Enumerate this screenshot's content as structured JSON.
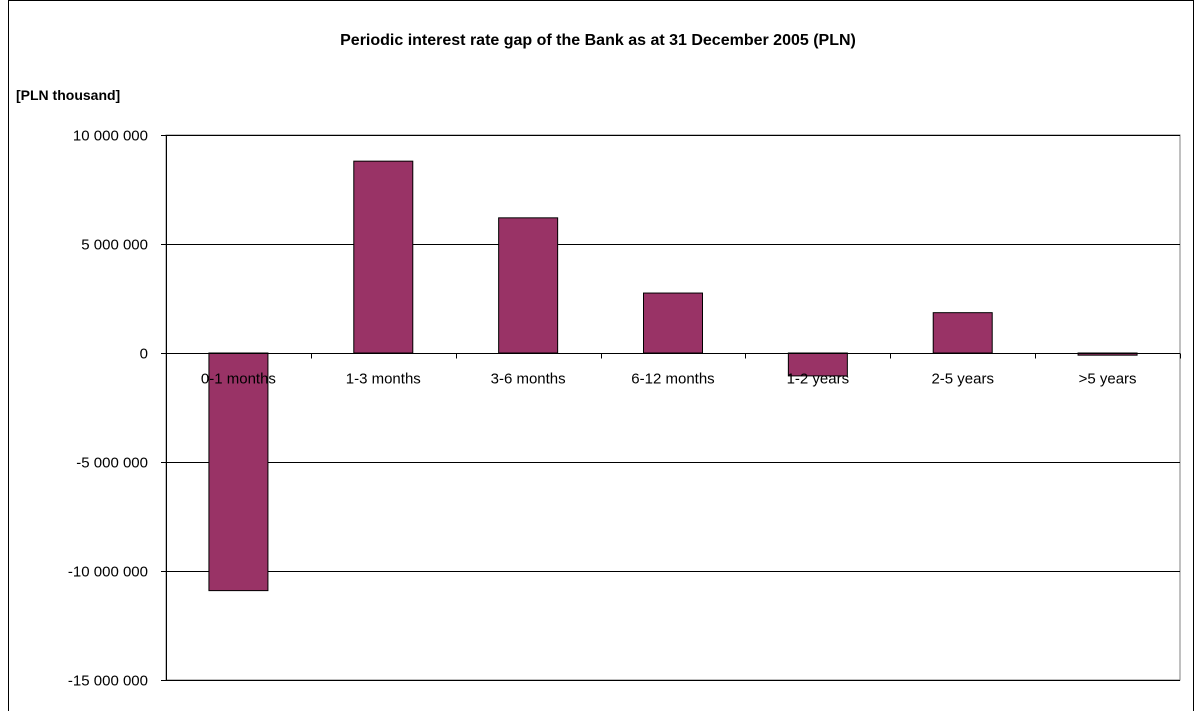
{
  "chart_data": {
    "type": "bar",
    "title": "Periodic interest rate gap of the Bank as at 31 December 2005 (PLN)",
    "ylabel": "[PLN thousand]",
    "xlabel": "",
    "categories": [
      "0-1 months",
      "1-3 months",
      "3-6 months",
      "6-12 months",
      "1-2 years",
      "2-5 years",
      ">5 years"
    ],
    "values": [
      -10900000,
      8800000,
      6200000,
      2750000,
      -1050000,
      1850000,
      -100000
    ],
    "ylim": [
      -15000000,
      10000000
    ],
    "yticks": [
      10000000,
      5000000,
      0,
      -5000000,
      -10000000,
      -15000000
    ],
    "ytick_labels": [
      "10 000 000",
      "5 000 000",
      "0",
      "-5 000 000",
      "-10 000 000",
      "-15 000 000"
    ],
    "grid": true,
    "bar_color": "#993366",
    "legend": "none"
  }
}
